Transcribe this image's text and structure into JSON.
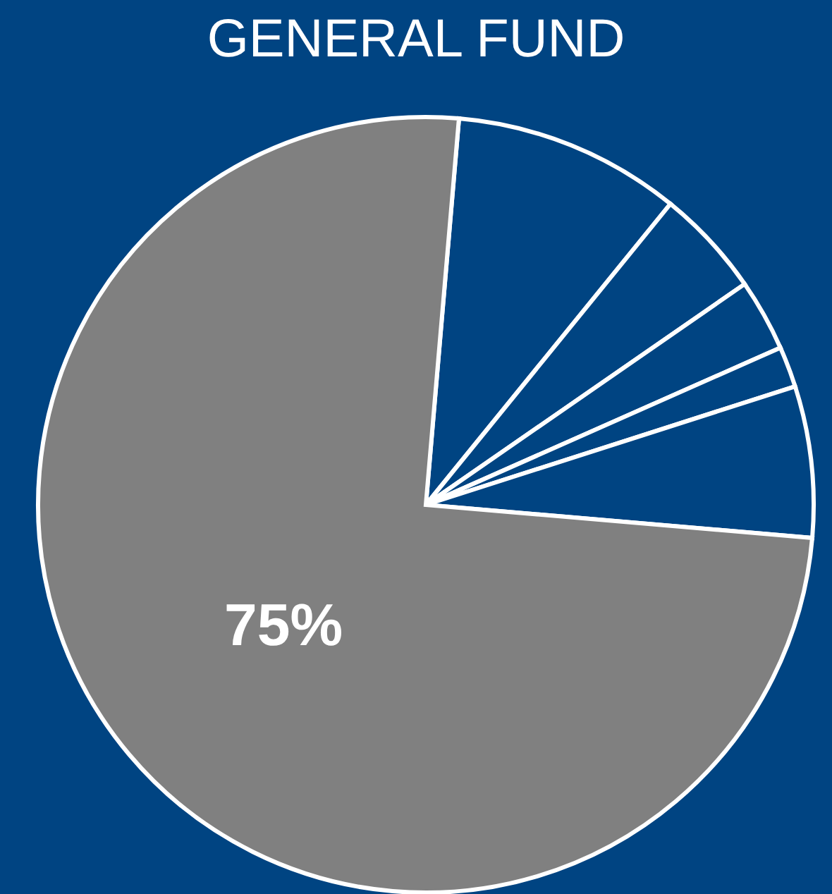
{
  "chart_data": {
    "type": "pie",
    "title": "GENERAL FUND",
    "categories": [
      null,
      null,
      null,
      null,
      null,
      null
    ],
    "values": [
      9.5,
      4.5,
      3,
      1.7,
      6.3,
      75
    ],
    "colors": [
      "#004482",
      "#004482",
      "#004482",
      "#004482",
      "#004482",
      "#808080"
    ],
    "value_labels": [
      null,
      null,
      null,
      null,
      null,
      "75%"
    ],
    "legend": false
  }
}
